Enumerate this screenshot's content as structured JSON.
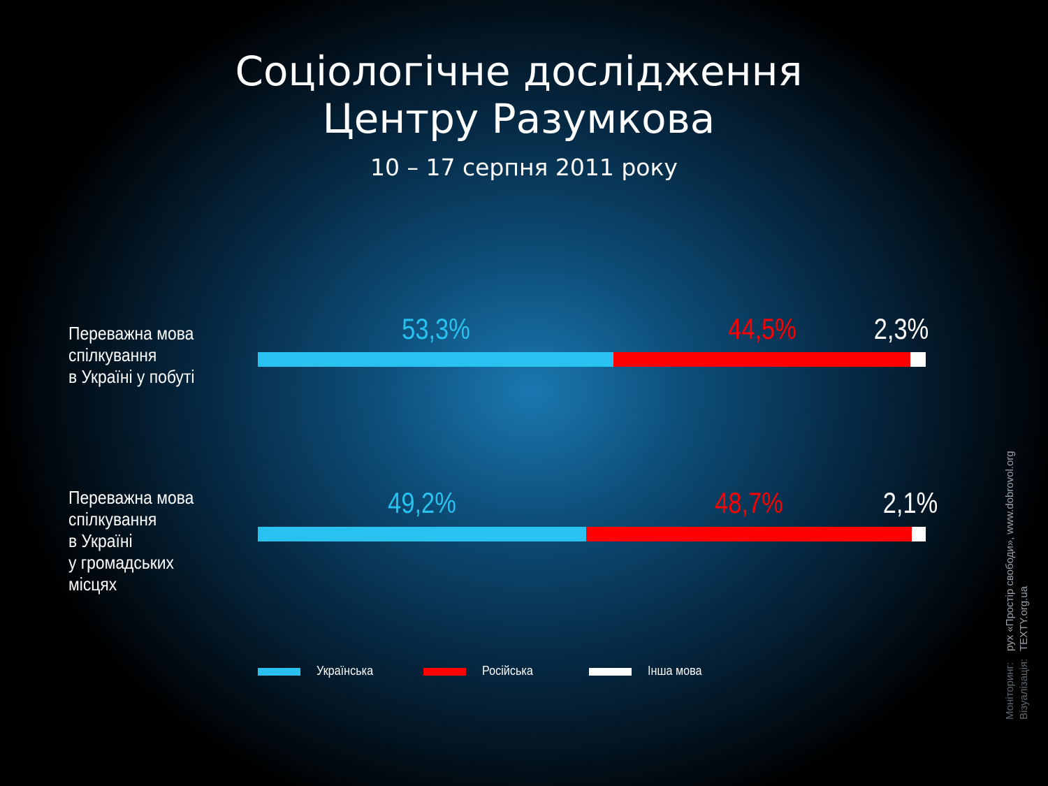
{
  "header": {
    "title_lines": [
      "Соціологічне дослідження",
      "Центру Разумкова"
    ],
    "subtitle": "10 – 17 серпня 2011 року"
  },
  "chart_data": {
    "type": "bar",
    "stacked": true,
    "orientation": "horizontal",
    "categories": [
      [
        "Переважна мова",
        "спілкування",
        "в Україні у побуті"
      ],
      [
        "Переважна мова",
        "спілкування",
        "в Україні",
        "у громадських",
        "місцях"
      ]
    ],
    "value_labels": [
      [
        "53,3%",
        "44,5%",
        "2,3%"
      ],
      [
        "49,2%",
        "48,7%",
        "2,1%"
      ]
    ],
    "series": [
      {
        "name": "Українська",
        "color": "#29c1ef",
        "values": [
          53.3,
          49.2
        ]
      },
      {
        "name": "Російська",
        "color": "#ff0000",
        "values": [
          44.5,
          48.7
        ]
      },
      {
        "name": "Інша мова",
        "color": "#ffffff",
        "values": [
          2.3,
          2.1
        ]
      }
    ],
    "legend_position": "bottom",
    "grid": false
  },
  "credits": {
    "monitoring_caption": "Моніторинг:",
    "monitoring_value": "рух «Простір свободи», www.dobrovol.org",
    "visualization_caption": "Візуалізація:",
    "visualization_value": "TEXTY.org.ua"
  }
}
